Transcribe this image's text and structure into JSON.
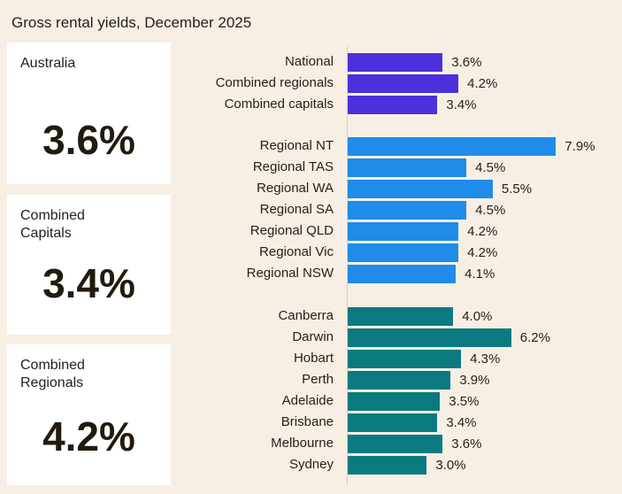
{
  "title": "Gross rental yields, December 2025",
  "cards": [
    {
      "label": "Australia",
      "value": "3.6%"
    },
    {
      "label": "Combined Capitals",
      "value": "3.4%"
    },
    {
      "label": "Combined Regionals",
      "value": "4.2%"
    }
  ],
  "chart_data": {
    "type": "bar",
    "orientation": "horizontal",
    "title": "Gross rental yields, December 2025",
    "unit": "%",
    "groups": [
      {
        "color": "#4b30dc",
        "categories": [
          "National",
          "Combined regionals",
          "Combined capitals"
        ],
        "values": [
          3.6,
          4.2,
          3.4
        ],
        "labels": [
          "3.6%",
          "4.2%",
          "3.4%"
        ]
      },
      {
        "color": "#1e8ce8",
        "categories": [
          "Regional NT",
          "Regional TAS",
          "Regional WA",
          "Regional SA",
          "Regional QLD",
          "Regional Vic",
          "Regional NSW"
        ],
        "values": [
          7.9,
          4.5,
          5.5,
          4.5,
          4.2,
          4.2,
          4.1
        ],
        "labels": [
          "7.9%",
          "4.5%",
          "5.5%",
          "4.5%",
          "4.2%",
          "4.2%",
          "4.1%"
        ]
      },
      {
        "color": "#0a7a80",
        "categories": [
          "Canberra",
          "Darwin",
          "Hobart",
          "Perth",
          "Adelaide",
          "Brisbane",
          "Melbourne",
          "Sydney"
        ],
        "values": [
          4.0,
          6.2,
          4.3,
          3.9,
          3.5,
          3.4,
          3.6,
          3.0
        ],
        "labels": [
          "4.0%",
          "6.2%",
          "4.3%",
          "3.9%",
          "3.5%",
          "3.4%",
          "3.6%",
          "3.0%"
        ]
      }
    ]
  }
}
